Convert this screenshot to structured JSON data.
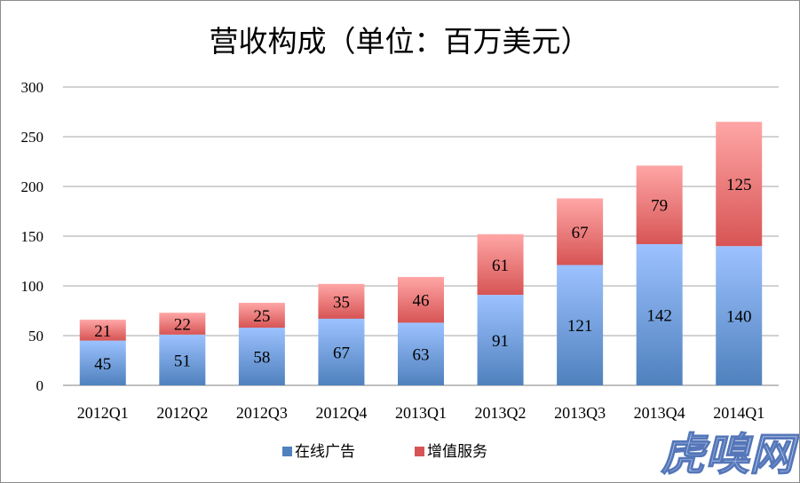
{
  "chart_data": {
    "type": "bar",
    "stacked": true,
    "title": "营收构成（单位：百万美元）",
    "categories": [
      "2012Q1",
      "2012Q2",
      "2012Q3",
      "2012Q4",
      "2013Q1",
      "2013Q2",
      "2013Q3",
      "2013Q4",
      "2014Q1"
    ],
    "series": [
      {
        "name": "在线广告",
        "values": [
          45,
          51,
          58,
          67,
          63,
          91,
          121,
          142,
          140
        ],
        "color": "#4f81bd",
        "color_light": "#9cc2ff"
      },
      {
        "name": "增值服务",
        "values": [
          21,
          22,
          25,
          35,
          46,
          61,
          67,
          79,
          125
        ],
        "color": "#d75454",
        "color_light": "#ffa6a6"
      }
    ],
    "ylim": [
      0,
      300
    ],
    "yticks": [
      0,
      50,
      100,
      150,
      200,
      250,
      300
    ],
    "grid": true,
    "legend": "bottom",
    "xlabel": "",
    "ylabel": ""
  },
  "watermark": "虎嗅网"
}
